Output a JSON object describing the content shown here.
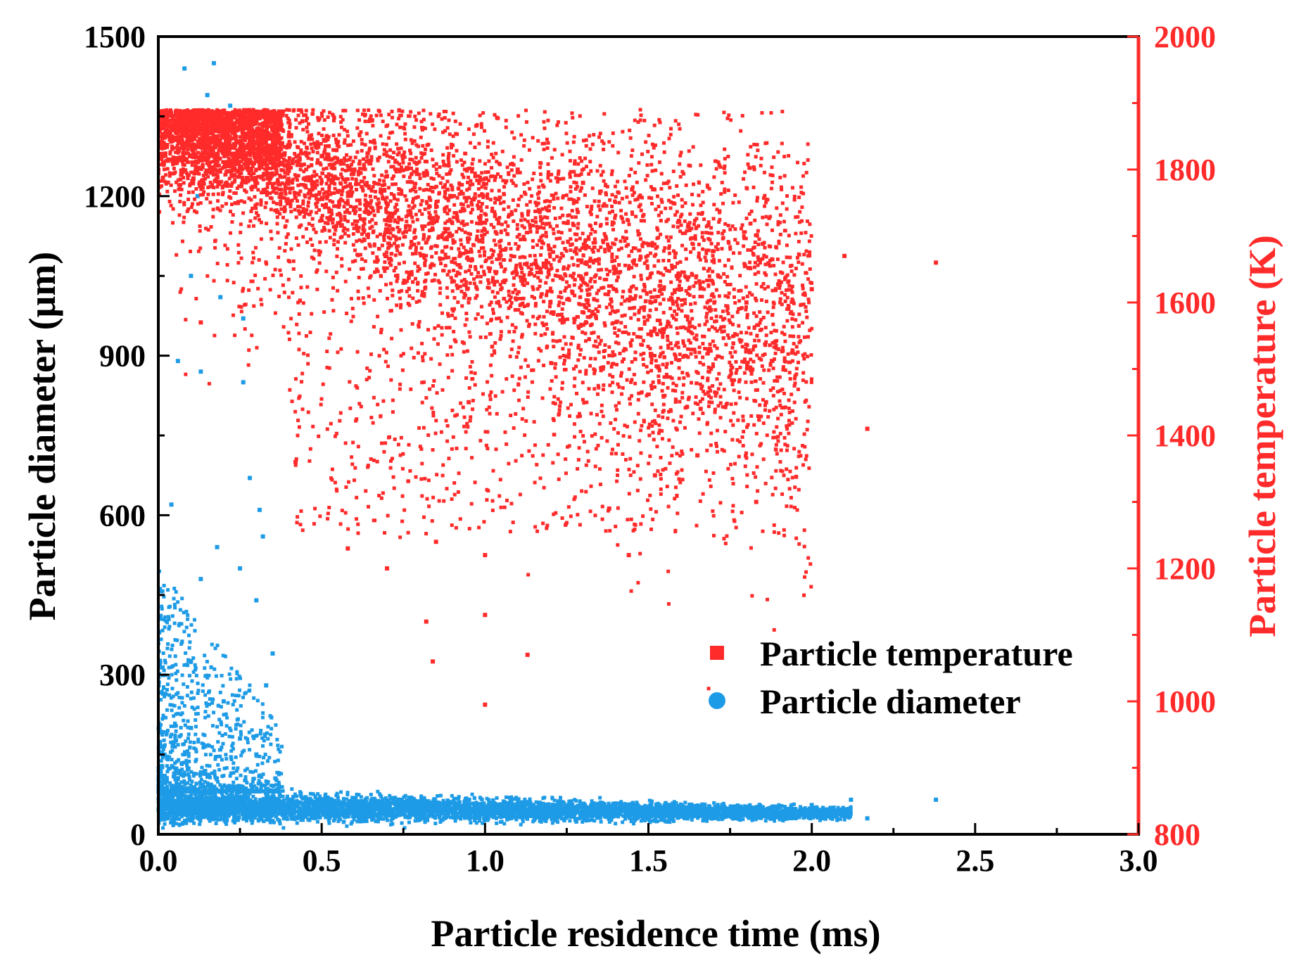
{
  "chart_data": {
    "type": "scatter",
    "xlabel": "Particle residence time (ms)",
    "ylabel_left": "Particle diameter (μm)",
    "ylabel_right": "Particle temperature (K)",
    "xlim": [
      0,
      3.0
    ],
    "ylim_left": [
      0,
      1500
    ],
    "ylim_right": [
      800,
      2000
    ],
    "x_ticks": [
      "0.0",
      "0.5",
      "1.0",
      "1.5",
      "2.0",
      "2.5",
      "3.0"
    ],
    "y_left_ticks": [
      "0",
      "300",
      "600",
      "900",
      "1200",
      "1500"
    ],
    "y_right_ticks": [
      "800",
      "1000",
      "1200",
      "1400",
      "1600",
      "1800",
      "2000"
    ],
    "grid": false,
    "legend_position": "lower-right",
    "series": [
      {
        "name": "Particle temperature",
        "axis": "right",
        "marker": "square",
        "color": "#ff2a2a",
        "distribution": "dense cloud capped at ~1890 K for residence times 0–0.38 ms, declining to ~1600 K near 1.5–2.1 ms, with sparse scatter down to ~1000 K",
        "points": [
          [
            0.1,
            1880
          ],
          [
            0.2,
            1885
          ],
          [
            0.3,
            1880
          ],
          [
            0.4,
            1850
          ],
          [
            0.5,
            1820
          ],
          [
            0.7,
            1790
          ],
          [
            0.9,
            1760
          ],
          [
            1.0,
            1720
          ],
          [
            1.2,
            1680
          ],
          [
            1.4,
            1650
          ],
          [
            1.6,
            1620
          ],
          [
            1.8,
            1600
          ],
          [
            2.0,
            1620
          ],
          [
            2.1,
            1670
          ],
          [
            0.6,
            1800
          ],
          [
            1.1,
            1800
          ],
          [
            1.3,
            1780
          ],
          [
            1.45,
            1770
          ],
          [
            0.42,
            1360
          ],
          [
            0.58,
            1230
          ],
          [
            0.85,
            1240
          ],
          [
            1.0,
            1220
          ],
          [
            0.7,
            1200
          ],
          [
            0.82,
            1120
          ],
          [
            0.84,
            1060
          ],
          [
            1.13,
            1070
          ],
          [
            1.0,
            995
          ],
          [
            1.52,
            1340
          ],
          [
            1.65,
            1370
          ],
          [
            1.83,
            1300
          ],
          [
            1.86,
            1450
          ],
          [
            1.66,
            1440
          ],
          [
            2.17,
            1410
          ],
          [
            2.38,
            1660
          ],
          [
            1.44,
            1220
          ],
          [
            1.38,
            1290
          ],
          [
            1.0,
            1130
          ],
          [
            0.13,
            1570
          ],
          [
            0.95,
            1450
          ],
          [
            1.2,
            1600
          ]
        ]
      },
      {
        "name": "Particle diameter",
        "axis": "left",
        "marker": "circle",
        "color": "#1e9be6",
        "distribution": "dense band at 20–90 μm for residence times 0–2.1 ms, with larger particles (100–1450 μm) only at short residence times below ~0.4 ms",
        "points": [
          [
            0.08,
            1440
          ],
          [
            0.17,
            1450
          ],
          [
            0.15,
            1390
          ],
          [
            0.22,
            1370
          ],
          [
            0.12,
            1200
          ],
          [
            0.1,
            1050
          ],
          [
            0.19,
            1010
          ],
          [
            0.26,
            970
          ],
          [
            0.26,
            850
          ],
          [
            0.13,
            870
          ],
          [
            0.06,
            890
          ],
          [
            0.28,
            670
          ],
          [
            0.31,
            610
          ],
          [
            0.32,
            560
          ],
          [
            0.04,
            620
          ],
          [
            0.18,
            540
          ],
          [
            0.25,
            500
          ],
          [
            0.13,
            480
          ],
          [
            0.3,
            440
          ],
          [
            0.35,
            340
          ],
          [
            0.33,
            280
          ],
          [
            0.2,
            250
          ],
          [
            0.1,
            200
          ],
          [
            0.25,
            180
          ],
          [
            0.3,
            150
          ],
          [
            0.5,
            60
          ],
          [
            1.0,
            50
          ],
          [
            1.5,
            45
          ],
          [
            2.0,
            55
          ],
          [
            2.12,
            65
          ],
          [
            2.17,
            30
          ],
          [
            2.38,
            65
          ]
        ]
      }
    ]
  },
  "legend": {
    "temperature_label": "Particle temperature",
    "diameter_label": "Particle diameter"
  },
  "colors": {
    "temperature": "#ff2a2a",
    "diameter": "#1e9be6",
    "right_axis": "#ff2a2a",
    "left_axis": "#000000"
  }
}
